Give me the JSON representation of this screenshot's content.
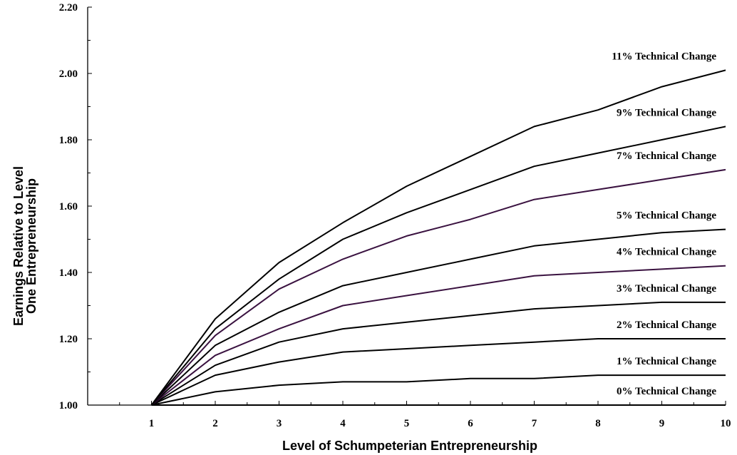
{
  "chart_data": {
    "type": "line",
    "xlabel": "Level of Schumpeterian Entrepreneurship",
    "ylabel_lines": [
      "Earnings Relative to Level",
      "One Entrepreneurship"
    ],
    "xlim": [
      0,
      10
    ],
    "ylim": [
      1.0,
      2.2
    ],
    "x_ticks": [
      1,
      2,
      3,
      4,
      5,
      6,
      7,
      8,
      9,
      10
    ],
    "y_ticks": [
      "1.00",
      "1.20",
      "1.40",
      "1.60",
      "1.80",
      "2.00",
      "2.20"
    ],
    "grid": false,
    "x": [
      1,
      2,
      3,
      4,
      5,
      6,
      7,
      8,
      9,
      10
    ],
    "series": [
      {
        "name": "0% Technical Change",
        "color": "#000000",
        "values": [
          1.0,
          1.0,
          1.0,
          1.0,
          1.0,
          1.0,
          1.0,
          1.0,
          1.0,
          1.0
        ]
      },
      {
        "name": "1% Technical Change",
        "color": "#000000",
        "values": [
          1.0,
          1.04,
          1.06,
          1.07,
          1.07,
          1.08,
          1.08,
          1.09,
          1.09,
          1.09
        ]
      },
      {
        "name": "2% Technical Change",
        "color": "#000000",
        "values": [
          1.0,
          1.09,
          1.13,
          1.16,
          1.17,
          1.18,
          1.19,
          1.2,
          1.2,
          1.2
        ]
      },
      {
        "name": "3% Technical Change",
        "color": "#000000",
        "values": [
          1.0,
          1.12,
          1.19,
          1.23,
          1.25,
          1.27,
          1.29,
          1.3,
          1.31,
          1.31
        ]
      },
      {
        "name": "4% Technical Change",
        "color": "#3a1240",
        "values": [
          1.0,
          1.15,
          1.23,
          1.3,
          1.33,
          1.36,
          1.39,
          1.4,
          1.41,
          1.42
        ]
      },
      {
        "name": "5% Technical Change",
        "color": "#000000",
        "values": [
          1.0,
          1.18,
          1.28,
          1.36,
          1.4,
          1.44,
          1.48,
          1.5,
          1.52,
          1.53
        ]
      },
      {
        "name": "7% Technical Change",
        "color": "#3a1240",
        "values": [
          1.0,
          1.21,
          1.35,
          1.44,
          1.51,
          1.56,
          1.62,
          1.65,
          1.68,
          1.71
        ]
      },
      {
        "name": "9% Technical Change",
        "color": "#000000",
        "values": [
          1.0,
          1.23,
          1.38,
          1.5,
          1.58,
          1.65,
          1.72,
          1.76,
          1.8,
          1.84
        ]
      },
      {
        "name": "11% Technical Change",
        "color": "#000000",
        "values": [
          1.0,
          1.26,
          1.43,
          1.55,
          1.66,
          1.75,
          1.84,
          1.89,
          1.96,
          2.01
        ]
      }
    ]
  }
}
